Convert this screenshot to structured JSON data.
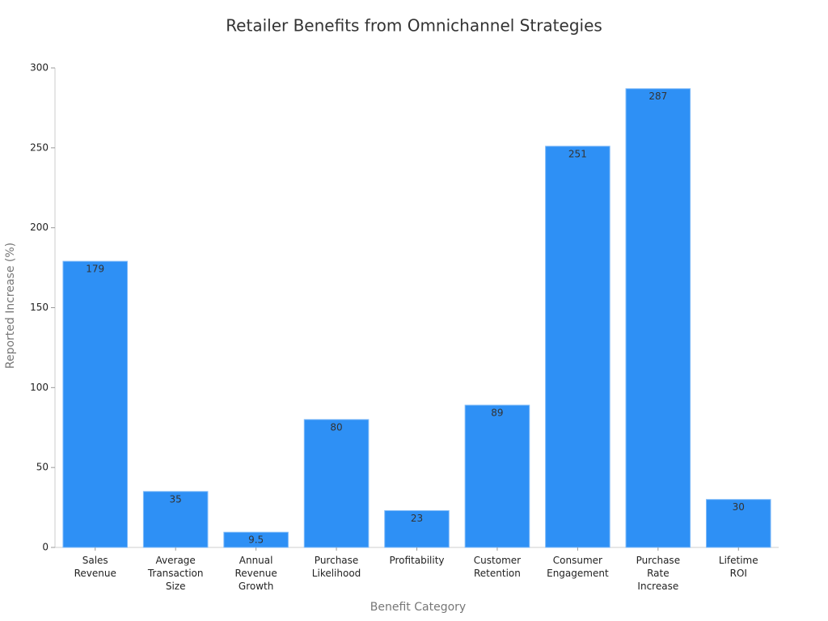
{
  "chart_data": {
    "type": "bar",
    "title": "Retailer Benefits from Omnichannel Strategies",
    "x_label": "Benefit Category",
    "y_label": "Reported Increase (%)",
    "categories": [
      "Sales\nRevenue",
      "Average\nTransaction\nSize",
      "Annual\nRevenue\nGrowth",
      "Purchase\nLikelihood",
      "Profitability",
      "Customer\nRetention",
      "Consumer\nEngagement",
      "Purchase\nRate\nIncrease",
      "Lifetime\nROI"
    ],
    "values": [
      179,
      35,
      9.5,
      80,
      23,
      89,
      251,
      287,
      30
    ],
    "color": "#2e90f5",
    "ylim": [
      0,
      300
    ],
    "yticks": [
      0,
      50,
      100,
      150,
      200,
      250,
      300
    ],
    "grid": false
  }
}
